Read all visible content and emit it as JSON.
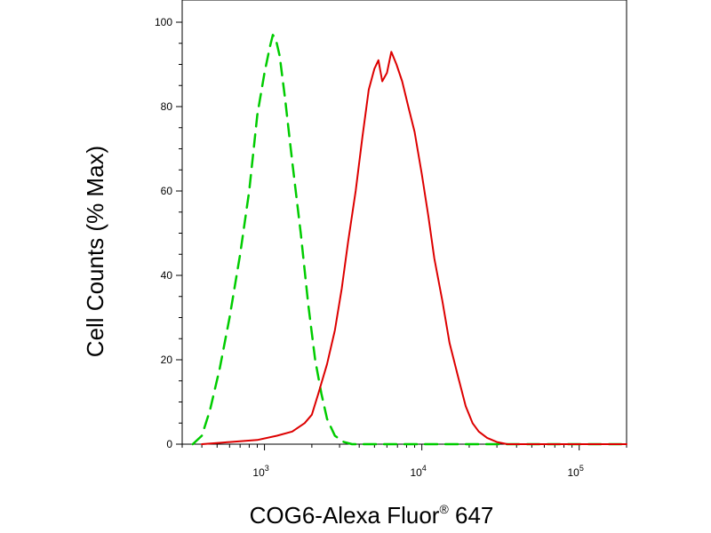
{
  "chart_data": {
    "type": "line",
    "title": "",
    "xlabel": "COG6-Alexa Fluor",
    "xlabel_super": "®",
    "xlabel_tail": " 647",
    "ylabel": "Cell Counts (% Max)",
    "x_scale": "log",
    "xlim": [
      300,
      200000
    ],
    "ylim": [
      0,
      100
    ],
    "y_ticks": [
      0,
      20,
      40,
      60,
      80,
      100
    ],
    "x_ticks": [
      {
        "value": 1000,
        "base": "10",
        "exp": "3"
      },
      {
        "value": 10000,
        "base": "10",
        "exp": "4"
      },
      {
        "value": 100000,
        "base": "10",
        "exp": "5"
      }
    ],
    "grid": false,
    "legend": "none",
    "series": [
      {
        "color": "#00cc00",
        "style": "dashed",
        "x": [
          350,
          400,
          450,
          520,
          600,
          700,
          800,
          900,
          1000,
          1080,
          1130,
          1180,
          1250,
          1350,
          1500,
          1700,
          1900,
          2100,
          2300,
          2500,
          2800,
          3200,
          3600,
          4500,
          8000,
          200000
        ],
        "y": [
          0,
          2,
          8,
          18,
          30,
          45,
          60,
          78,
          88,
          94,
          97,
          96,
          92,
          82,
          67,
          50,
          33,
          20,
          12,
          6,
          2,
          0.5,
          0,
          0,
          0,
          0
        ]
      },
      {
        "color": "#dd0000",
        "style": "solid",
        "x": [
          400,
          600,
          900,
          1200,
          1500,
          1800,
          2000,
          2200,
          2500,
          2800,
          3100,
          3400,
          3800,
          4200,
          4600,
          5000,
          5300,
          5600,
          6000,
          6400,
          6900,
          7500,
          8200,
          9000,
          10000,
          11000,
          12000,
          13500,
          15000,
          17000,
          19000,
          21000,
          23000,
          26000,
          30000,
          35000,
          50000,
          100000,
          200000
        ],
        "y": [
          0,
          0.5,
          1,
          2,
          3,
          5,
          7,
          12,
          19,
          27,
          37,
          48,
          60,
          73,
          84,
          89,
          91,
          86,
          88,
          93,
          90,
          86,
          80,
          74,
          64,
          54,
          44,
          34,
          24,
          16,
          9,
          5,
          3,
          1.5,
          0.5,
          0,
          0,
          0,
          0
        ]
      }
    ]
  }
}
